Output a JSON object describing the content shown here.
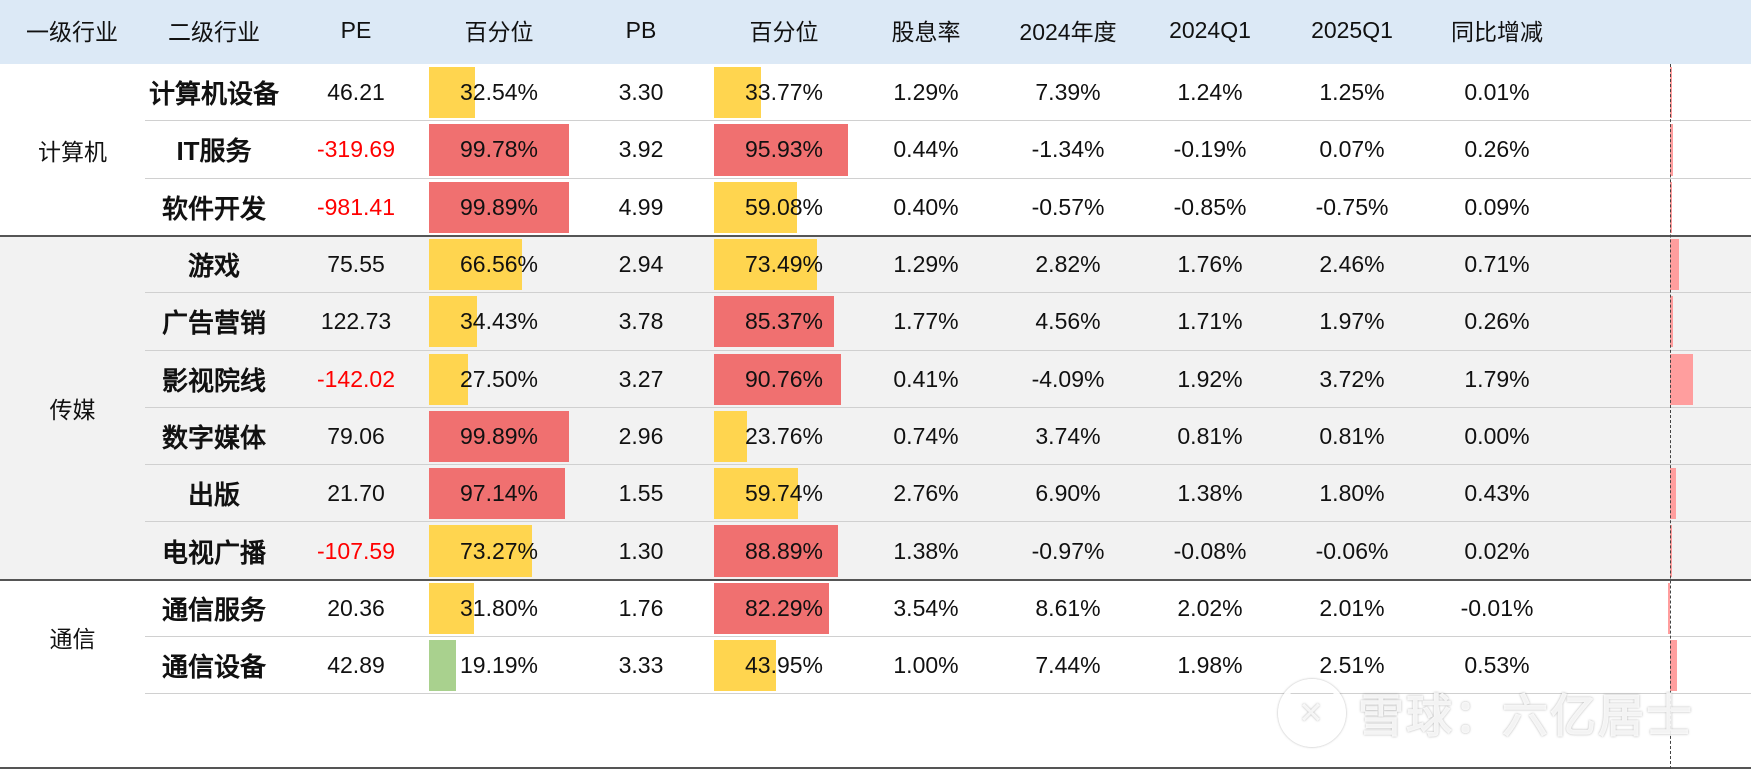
{
  "headers": [
    "一级行业",
    "二级行业",
    "PE",
    "百分位",
    "PB",
    "百分位",
    "股息率",
    "2024年度",
    "2024Q1",
    "2025Q1",
    "同比增减"
  ],
  "groups": [
    {
      "name": "计算机",
      "rows": [
        0,
        2
      ]
    },
    {
      "name": "传媒",
      "rows": [
        3,
        8
      ]
    },
    {
      "name": "通信",
      "rows": [
        9,
        10
      ]
    }
  ],
  "rows": [
    {
      "sub": "计算机设备",
      "pe": "46.21",
      "pe_pct": "32.54%",
      "pe_pct_v": 32.54,
      "pb": "3.30",
      "pb_pct": "33.77%",
      "pb_pct_v": 33.77,
      "div": "1.29%",
      "y2024": "7.39%",
      "q2024": "1.24%",
      "q2025": "1.25%",
      "yoy": "0.01%",
      "yoy_v": 0.01
    },
    {
      "sub": "IT服务",
      "pe": "-319.69",
      "pe_pct": "99.78%",
      "pe_pct_v": 99.78,
      "pb": "3.92",
      "pb_pct": "95.93%",
      "pb_pct_v": 95.93,
      "div": "0.44%",
      "y2024": "-1.34%",
      "q2024": "-0.19%",
      "q2025": "0.07%",
      "yoy": "0.26%",
      "yoy_v": 0.26
    },
    {
      "sub": "软件开发",
      "pe": "-981.41",
      "pe_pct": "99.89%",
      "pe_pct_v": 99.89,
      "pb": "4.99",
      "pb_pct": "59.08%",
      "pb_pct_v": 59.08,
      "div": "0.40%",
      "y2024": "-0.57%",
      "q2024": "-0.85%",
      "q2025": "-0.75%",
      "yoy": "0.09%",
      "yoy_v": 0.09
    },
    {
      "sub": "游戏",
      "pe": "75.55",
      "pe_pct": "66.56%",
      "pe_pct_v": 66.56,
      "pb": "2.94",
      "pb_pct": "73.49%",
      "pb_pct_v": 73.49,
      "div": "1.29%",
      "y2024": "2.82%",
      "q2024": "1.76%",
      "q2025": "2.46%",
      "yoy": "0.71%",
      "yoy_v": 0.71
    },
    {
      "sub": "广告营销",
      "pe": "122.73",
      "pe_pct": "34.43%",
      "pe_pct_v": 34.43,
      "pb": "3.78",
      "pb_pct": "85.37%",
      "pb_pct_v": 85.37,
      "div": "1.77%",
      "y2024": "4.56%",
      "q2024": "1.71%",
      "q2025": "1.97%",
      "yoy": "0.26%",
      "yoy_v": 0.26
    },
    {
      "sub": "影视院线",
      "pe": "-142.02",
      "pe_pct": "27.50%",
      "pe_pct_v": 27.5,
      "pb": "3.27",
      "pb_pct": "90.76%",
      "pb_pct_v": 90.76,
      "div": "0.41%",
      "y2024": "-4.09%",
      "q2024": "1.92%",
      "q2025": "3.72%",
      "yoy": "1.79%",
      "yoy_v": 1.79
    },
    {
      "sub": "数字媒体",
      "pe": "79.06",
      "pe_pct": "99.89%",
      "pe_pct_v": 99.89,
      "pb": "2.96",
      "pb_pct": "23.76%",
      "pb_pct_v": 23.76,
      "div": "0.74%",
      "y2024": "3.74%",
      "q2024": "0.81%",
      "q2025": "0.81%",
      "yoy": "0.00%",
      "yoy_v": 0.0
    },
    {
      "sub": "出版",
      "pe": "21.70",
      "pe_pct": "97.14%",
      "pe_pct_v": 97.14,
      "pb": "1.55",
      "pb_pct": "59.74%",
      "pb_pct_v": 59.74,
      "div": "2.76%",
      "y2024": "6.90%",
      "q2024": "1.38%",
      "q2025": "1.80%",
      "yoy": "0.43%",
      "yoy_v": 0.43
    },
    {
      "sub": "电视广播",
      "pe": "-107.59",
      "pe_pct": "73.27%",
      "pe_pct_v": 73.27,
      "pb": "1.30",
      "pb_pct": "88.89%",
      "pb_pct_v": 88.89,
      "div": "1.38%",
      "y2024": "-0.97%",
      "q2024": "-0.08%",
      "q2025": "-0.06%",
      "yoy": "0.02%",
      "yoy_v": 0.02
    },
    {
      "sub": "通信服务",
      "pe": "20.36",
      "pe_pct": "31.80%",
      "pe_pct_v": 31.8,
      "pb": "1.76",
      "pb_pct": "82.29%",
      "pb_pct_v": 82.29,
      "div": "3.54%",
      "y2024": "8.61%",
      "q2024": "2.02%",
      "q2025": "2.01%",
      "yoy": "-0.01%",
      "yoy_v": -0.01
    },
    {
      "sub": "通信设备",
      "pe": "42.89",
      "pe_pct": "19.19%",
      "pe_pct_v": 19.19,
      "pb": "3.33",
      "pb_pct": "43.95%",
      "pb_pct_v": 43.95,
      "div": "1.00%",
      "y2024": "7.44%",
      "q2024": "1.98%",
      "q2025": "2.51%",
      "yoy": "0.53%",
      "yoy_v": 0.53
    }
  ],
  "colors": {
    "high": "#f07070",
    "mid": "#ffd54f",
    "low": "#a9d18e",
    "yoy": "#ff9e9e",
    "header_bg": "#dce9f6",
    "negative": "#ff0000"
  },
  "watermark": "雪球：六亿居士"
}
